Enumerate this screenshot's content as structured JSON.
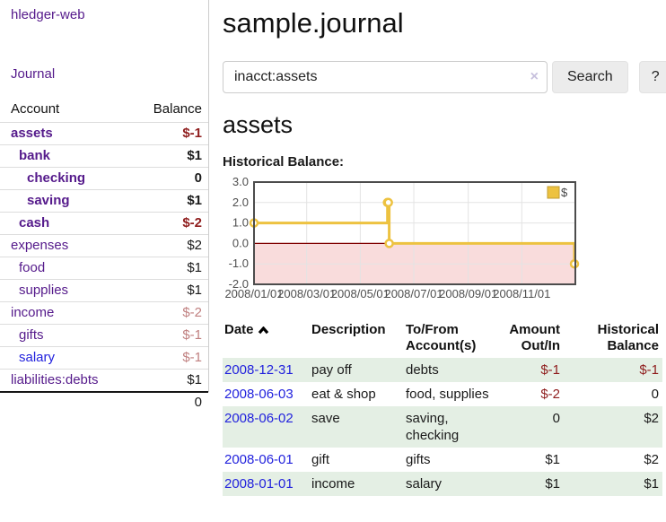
{
  "app_title": "hledger-web",
  "nav": {
    "journal_label": "Journal"
  },
  "colors": {
    "purple_link": "#551a8b",
    "blue_link": "#2222dd",
    "negative_strong": "#8f1d1d",
    "negative_soft": "#c08080",
    "row_green": "#e4efe4",
    "chart_line": "#edc240",
    "chart_negative_fill": "#f9dcdc",
    "chart_zero_line": "#800000"
  },
  "sidebar": {
    "accounts_table": {
      "headers": {
        "account": "Account",
        "balance": "Balance"
      },
      "rows": [
        {
          "account": "assets",
          "indent": 1,
          "bold": true,
          "balance": "$-1",
          "balance_style": "neg"
        },
        {
          "account": "bank",
          "indent": 2,
          "bold": true,
          "balance": "$1",
          "balance_style": "pos"
        },
        {
          "account": "checking",
          "indent": 3,
          "bold": true,
          "balance": "0",
          "balance_style": "pos"
        },
        {
          "account": "saving",
          "indent": 3,
          "bold": true,
          "balance": "$1",
          "balance_style": "pos"
        },
        {
          "account": "cash",
          "indent": 2,
          "bold": true,
          "balance": "$-2",
          "balance_style": "neg"
        },
        {
          "account": "expenses",
          "indent": 1,
          "bold": false,
          "balance": "$2",
          "balance_style": "pos"
        },
        {
          "account": "food",
          "indent": 2,
          "bold": false,
          "balance": "$1",
          "balance_style": "pos"
        },
        {
          "account": "supplies",
          "indent": 2,
          "bold": false,
          "balance": "$1",
          "balance_style": "pos"
        },
        {
          "account": "income",
          "indent": 1,
          "bold": false,
          "balance": "$-2",
          "balance_style": "neg-soft"
        },
        {
          "account": "gifts",
          "indent": 2,
          "bold": false,
          "balance": "$-1",
          "balance_style": "neg-soft"
        },
        {
          "account": "salary",
          "indent": 2,
          "bold": false,
          "link_color": "blue",
          "balance": "$-1",
          "balance_style": "neg-soft"
        },
        {
          "account": "liabilities:debts",
          "indent": 1,
          "bold": false,
          "balance": "$1",
          "balance_style": "pos"
        }
      ],
      "total": "0"
    }
  },
  "header": {
    "title": "sample.journal"
  },
  "search": {
    "value": "inacct:assets",
    "clear_icon": "×",
    "search_button": "Search",
    "help_button": "?"
  },
  "account_page": {
    "title": "assets",
    "chart_label": "Historical Balance:"
  },
  "chart_data": {
    "type": "line",
    "style": "step",
    "title": "Historical Balance",
    "series": [
      {
        "name": "$",
        "color": "#edc240",
        "points": [
          [
            "2008-01-01",
            1
          ],
          [
            "2008-06-01",
            2
          ],
          [
            "2008-06-02",
            2
          ],
          [
            "2008-06-03",
            0
          ],
          [
            "2008-12-31",
            -1
          ]
        ]
      }
    ],
    "x_range": [
      "2008-01-01",
      "2009-01-01"
    ],
    "x_ticks": [
      "2008/01/01",
      "2008/03/01",
      "2008/05/01",
      "2008/07/01",
      "2008/09/01",
      "2008/11/01"
    ],
    "y_ticks": [
      "3.0",
      "2.0",
      "1.0",
      "0.0",
      "-1.0",
      "-2.0"
    ],
    "ylim": [
      -2,
      3
    ],
    "grid": true,
    "negative_fill": "#f9dcdc",
    "zero_line_color": "#800000",
    "legend": {
      "label": "$",
      "position": "top-right"
    }
  },
  "register_table": {
    "headers": {
      "date": "Date",
      "description": "Description",
      "tofrom": "To/From Account(s)",
      "amount": "Amount Out/In",
      "balance": "Historical Balance"
    },
    "rows": [
      {
        "date": "2008-12-31",
        "description": "pay off",
        "tofrom": "debts",
        "amount": "$-1",
        "amount_neg": true,
        "balance": "$-1",
        "balance_neg": true,
        "shaded": true
      },
      {
        "date": "2008-06-03",
        "description": "eat & shop",
        "tofrom": "food, supplies",
        "amount": "$-2",
        "amount_neg": true,
        "balance": "0",
        "balance_neg": false,
        "shaded": false
      },
      {
        "date": "2008-06-02",
        "description": "save",
        "tofrom": "saving, checking",
        "amount": "0",
        "amount_neg": false,
        "balance": "$2",
        "balance_neg": false,
        "shaded": true
      },
      {
        "date": "2008-06-01",
        "description": "gift",
        "tofrom": "gifts",
        "amount": "$1",
        "amount_neg": false,
        "balance": "$2",
        "balance_neg": false,
        "shaded": false
      },
      {
        "date": "2008-01-01",
        "description": "income",
        "tofrom": "salary",
        "amount": "$1",
        "amount_neg": false,
        "balance": "$1",
        "balance_neg": false,
        "shaded": true
      }
    ]
  }
}
